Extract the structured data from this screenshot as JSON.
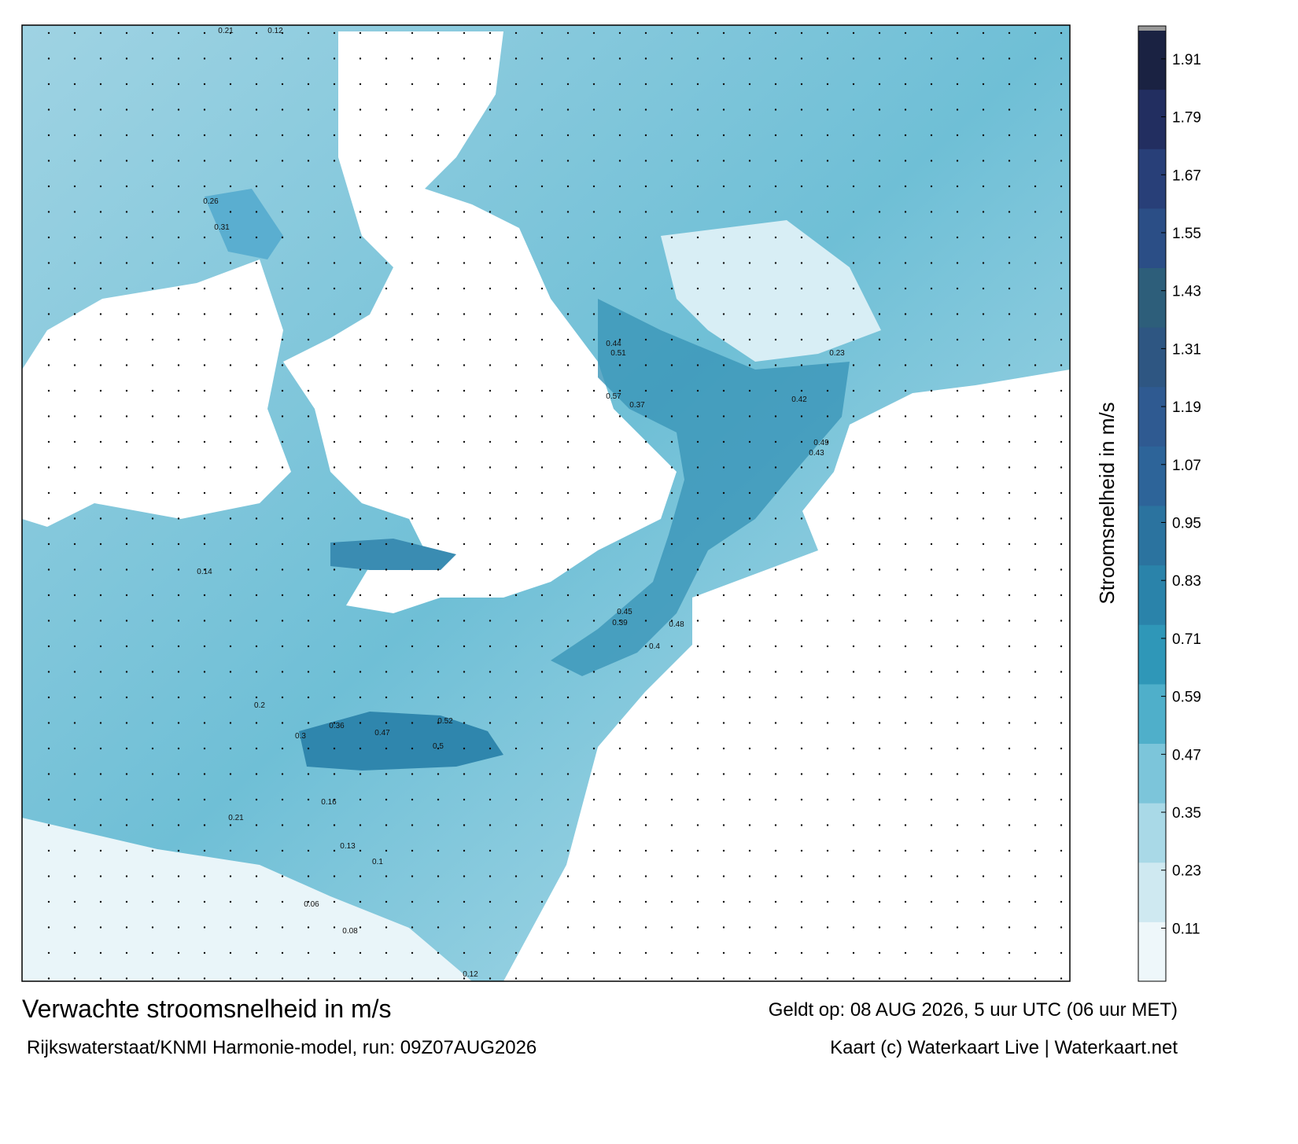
{
  "header": {
    "title": "Verwachte stroomsnelheid in m/s",
    "valid": "Geldt op: 08 AUG 2026, 5 uur UTC (06 uur MET)",
    "source": "Rijkswaterstaat/KNMI Harmonie-model, run: 09Z07AUG2026",
    "credit": "Kaart (c) Waterkaart Live | Waterkaart.net"
  },
  "colorbar": {
    "label": "Stroomsnelheid in m/s",
    "range": [
      0,
      1.97
    ],
    "ticks": [
      0.11,
      0.23,
      0.35,
      0.47,
      0.59,
      0.71,
      0.83,
      0.95,
      1.07,
      1.19,
      1.31,
      1.43,
      1.55,
      1.67,
      1.79,
      1.91
    ],
    "colors": [
      "#eef7fa",
      "#cfe9f1",
      "#a9d9e7",
      "#7cc5da",
      "#4fafca",
      "#2f97b8",
      "#2a83aa",
      "#2b739f",
      "#2d6499",
      "#2f5a91",
      "#2e5682",
      "#2d5e7a",
      "#2b4e86",
      "#283f78",
      "#222e60",
      "#1a2242"
    ]
  },
  "labels": [
    0.21,
    0.12,
    0.31,
    0.26,
    0.44,
    0.51,
    0.57,
    0.37,
    0.42,
    0.49,
    0.43,
    0.4,
    0.39,
    0.45,
    0.52,
    0.5,
    0.47,
    0.36,
    0.48,
    0.14,
    0.16,
    0.21,
    0.2,
    0.13,
    0.1,
    0.08,
    0.06,
    0.12,
    0.23,
    0.3
  ]
}
